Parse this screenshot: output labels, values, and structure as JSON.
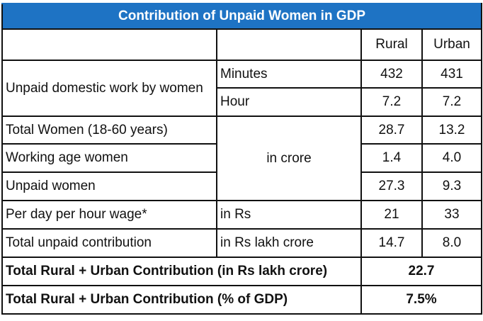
{
  "title": "Contribution of Unpaid Women in GDP",
  "header": {
    "col1": "",
    "col2": "",
    "rural": "Rural",
    "urban": "Urban"
  },
  "rows": {
    "domestic_label": "Unpaid domestic work by women",
    "minutes": {
      "unit": "Minutes",
      "rural": "432",
      "urban": "431"
    },
    "hour": {
      "unit": "Hour",
      "rural": "7.2",
      "urban": "7.2"
    },
    "crore_unit": "in crore",
    "total_women": {
      "label": "Total Women (18-60 years)",
      "rural": "28.7",
      "urban": "13.2"
    },
    "working_age": {
      "label": "Working age women",
      "rural": "1.4",
      "urban": "4.0"
    },
    "unpaid_women": {
      "label": "Unpaid women",
      "rural": "27.3",
      "urban": "9.3"
    },
    "wage": {
      "label": "Per day per hour wage*",
      "unit": "in Rs",
      "rural": "21",
      "urban": "33"
    },
    "contribution": {
      "label": "Total unpaid contribution",
      "unit": "in Rs lakh crore",
      "rural": "14.7",
      "urban": "8.0"
    }
  },
  "totals": [
    {
      "label": "Total Rural + Urban Contribution (in Rs lakh crore)",
      "value": "22.7"
    },
    {
      "label": "Total Rural + Urban Contribution (% of GDP)",
      "value": "7.5%"
    }
  ],
  "colors": {
    "title_bg": "#1e73c4",
    "title_text": "#ffffff",
    "border": "#111111"
  }
}
